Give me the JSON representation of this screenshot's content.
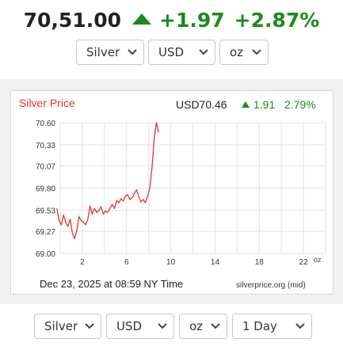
{
  "ticker": {
    "price": "70,51.00",
    "change": "+1.97",
    "change_pct": "+2.87%",
    "up_color": "#1c8a1c"
  },
  "top_selects": {
    "metal": "Silver",
    "currency": "USD",
    "unit": "oz"
  },
  "chart_header": {
    "title": "Silver Price",
    "quote": "USD70.46",
    "change": "1.91",
    "change_pct": "2.79%",
    "title_color": "#e03030"
  },
  "chart_footer": {
    "timestamp": "Dec 23, 2025 at 08:59 NY Time",
    "source": "silverprice.org (mid)",
    "unit_label": "oz"
  },
  "chart_data": {
    "type": "line",
    "xlim": [
      0,
      24
    ],
    "ylim": [
      69.0,
      70.6
    ],
    "x_ticks": [
      2,
      6,
      10,
      14,
      18,
      22
    ],
    "y_ticks": [
      "69.00",
      "69.27",
      "69.53",
      "69.80",
      "70.07",
      "70.33",
      "70.60"
    ],
    "line_color": "#e83030",
    "grid": true,
    "x": [
      -0.3,
      -0.1,
      0.1,
      0.3,
      0.5,
      0.7,
      0.9,
      1.1,
      1.3,
      1.5,
      1.7,
      1.9,
      2.1,
      2.3,
      2.5,
      2.7,
      2.9,
      3.1,
      3.3,
      3.5,
      3.7,
      3.9,
      4.1,
      4.3,
      4.5,
      4.7,
      4.9,
      5.1,
      5.3,
      5.5,
      5.7,
      5.9,
      6.1,
      6.3,
      6.5,
      6.7,
      6.9,
      7.1,
      7.3,
      7.5,
      7.7,
      7.9,
      8.1,
      8.3,
      8.5,
      8.7,
      8.9
    ],
    "values": [
      69.55,
      69.4,
      69.35,
      69.47,
      69.38,
      69.33,
      69.42,
      69.25,
      69.18,
      69.28,
      69.45,
      69.4,
      69.38,
      69.35,
      69.42,
      69.58,
      69.48,
      69.55,
      69.5,
      69.53,
      69.57,
      69.48,
      69.52,
      69.5,
      69.55,
      69.6,
      69.55,
      69.65,
      69.62,
      69.67,
      69.64,
      69.7,
      69.72,
      69.66,
      69.68,
      69.73,
      69.78,
      69.7,
      69.63,
      69.66,
      69.62,
      69.7,
      69.8,
      70.05,
      70.4,
      70.6,
      70.48
    ]
  },
  "bottom_selects": {
    "metal": "Silver",
    "currency": "USD",
    "unit": "oz",
    "period": "1 Day"
  }
}
